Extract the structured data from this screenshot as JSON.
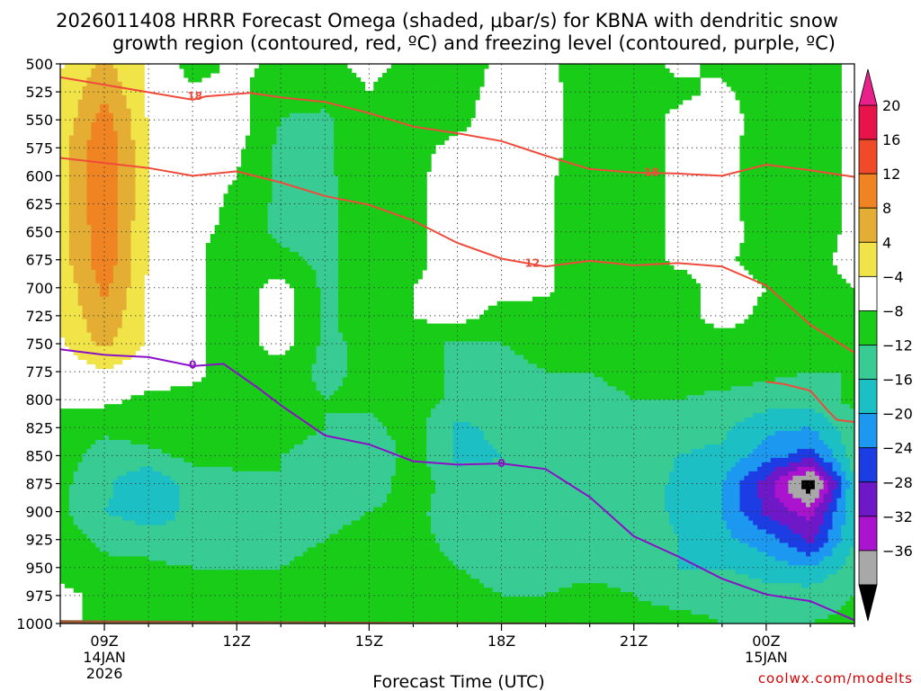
{
  "chart_data": {
    "type": "heatmap",
    "title_line1": "2026011408 HRRR Forecast Omega (shaded, μbar/s) for KBNA with dendritic snow",
    "title_line2": "growth region (contoured, red, ºC) and freezing level (contoured, purple, ºC)",
    "xlabel": "Forecast Time (UTC)",
    "x_hours": [
      8,
      9,
      10,
      11,
      12,
      13,
      14,
      15,
      16,
      17,
      18,
      19,
      20,
      21,
      22,
      23,
      24,
      25,
      26
    ],
    "x_ticks": [
      {
        "hour": 9,
        "label": "09Z",
        "date": "14JAN",
        "year": "2026"
      },
      {
        "hour": 12,
        "label": "12Z",
        "date": "",
        "year": ""
      },
      {
        "hour": 15,
        "label": "15Z",
        "date": "",
        "year": ""
      },
      {
        "hour": 18,
        "label": "18Z",
        "date": "",
        "year": ""
      },
      {
        "hour": 21,
        "label": "21Z",
        "date": "",
        "year": ""
      },
      {
        "hour": 24,
        "label": "00Z",
        "date": "15JAN",
        "year": ""
      }
    ],
    "y_levels": [
      500,
      525,
      550,
      575,
      600,
      625,
      650,
      675,
      700,
      725,
      750,
      775,
      800,
      825,
      850,
      875,
      900,
      925,
      950,
      975,
      1000
    ],
    "ylim": [
      500,
      1000
    ],
    "y_reversed": true,
    "grid": true,
    "colorbar": {
      "labels": [
        "20",
        "16",
        "12",
        "8",
        "4",
        "−4",
        "−8",
        "−12",
        "−16",
        "−20",
        "−24",
        "−28",
        "−32",
        "−36"
      ],
      "bins": [
        {
          "lo": 16,
          "hi": 20,
          "color": "#e8134a"
        },
        {
          "lo": 12,
          "hi": 16,
          "color": "#ef4a2a"
        },
        {
          "lo": 8,
          "hi": 12,
          "color": "#f08422"
        },
        {
          "lo": 4,
          "hi": 8,
          "color": "#e3ae33"
        },
        {
          "lo": -4,
          "hi": 4,
          "color": "#f0e448"
        },
        {
          "lo": -8,
          "hi": -4,
          "color": "#ffffff"
        },
        {
          "lo": -12,
          "hi": -8,
          "color": "#18cc18"
        },
        {
          "lo": -16,
          "hi": -12,
          "color": "#38cc94"
        },
        {
          "lo": -20,
          "hi": -16,
          "color": "#1cc0c4"
        },
        {
          "lo": -24,
          "hi": -20,
          "color": "#1c98f0"
        },
        {
          "lo": -28,
          "hi": -24,
          "color": "#1c3ce4"
        },
        {
          "lo": -32,
          "hi": -28,
          "color": "#6e18c8"
        },
        {
          "lo": -36,
          "hi": -32,
          "color": "#aa14ce"
        },
        {
          "lo": -40,
          "hi": -36,
          "color": "#a8a8a8"
        }
      ],
      "top_arrow_color": "#e8208a",
      "bottom_arrow_color": "#000000"
    },
    "omega_field": {
      "units": "microbar/s",
      "x_hours": [
        8,
        9,
        10,
        11,
        12,
        13,
        14,
        15,
        16,
        17,
        18,
        19,
        20,
        21,
        22,
        23,
        24,
        25,
        26
      ],
      "levels": [
        500,
        525,
        550,
        575,
        600,
        625,
        650,
        675,
        700,
        725,
        750,
        775,
        800,
        825,
        850,
        875,
        900,
        925,
        950,
        975,
        1000
      ],
      "values": [
        [
          0,
          5,
          0,
          -6,
          -3,
          -5,
          -5,
          -3,
          -5,
          -6,
          -3,
          -3,
          -7,
          -6,
          -3,
          -5,
          -7,
          -6,
          -3
        ],
        [
          1,
          7,
          0,
          -3,
          -3,
          -7,
          -6,
          -4,
          -6,
          -5,
          -3,
          -2,
          -7,
          -6,
          -5,
          -3,
          -7,
          -6,
          -3
        ],
        [
          1,
          10,
          0,
          -2,
          -2,
          -8,
          -9,
          -4,
          -6,
          -5,
          -2,
          -2,
          -7,
          -6,
          -3,
          -1,
          -7,
          -6,
          -3
        ],
        [
          2,
          12,
          0,
          -2,
          -3,
          -9,
          -9,
          -4,
          -5,
          -3,
          -2,
          -2,
          -7,
          -6,
          -3,
          -2,
          -7,
          -6,
          -3
        ],
        [
          2,
          12,
          0,
          -2,
          -4,
          -9,
          -9,
          -5,
          -5,
          -2,
          -2,
          -3,
          -7,
          -6,
          -3,
          -2,
          -7,
          -6,
          -3
        ],
        [
          2,
          12,
          0,
          -2,
          -5,
          -9,
          -9,
          -5,
          -5,
          -2,
          -2,
          -3,
          -7,
          -6,
          -3,
          -2,
          -7,
          -6,
          -3
        ],
        [
          2,
          11,
          0,
          -3,
          -5,
          -9,
          -9,
          -5,
          -5,
          -2,
          -2,
          -3,
          -7,
          -6,
          -3,
          -2,
          -6,
          -6,
          -3
        ],
        [
          2,
          11,
          0,
          -3,
          -7,
          -7,
          -9,
          -5,
          -5,
          -2,
          -2,
          -3,
          -7,
          -6,
          -3,
          -3,
          -6,
          -5,
          -3
        ],
        [
          1,
          9,
          0,
          -3,
          -6,
          -2,
          -9,
          -5,
          -4,
          -2,
          -2,
          -3,
          -7,
          -6,
          -6,
          -2,
          -4,
          -5,
          -4
        ],
        [
          1,
          7,
          0,
          -3,
          -6,
          -2,
          -9,
          -5,
          -4,
          -2,
          -6,
          -6,
          -7,
          -6,
          -6,
          -2,
          -5,
          -5,
          -5
        ],
        [
          0,
          5,
          0,
          -3,
          -6,
          -2,
          -9,
          -7,
          -5,
          -9,
          -8,
          -7,
          -7,
          -7,
          -6,
          -6,
          -6,
          -7,
          -7
        ],
        [
          -2,
          0,
          -2,
          -3,
          -6,
          -6,
          -9,
          -7,
          -6,
          -9,
          -9,
          -8,
          -8,
          -7,
          -6,
          -6,
          -7,
          -8,
          -8
        ],
        [
          -3,
          -3,
          -5,
          -5,
          -7,
          -6,
          -8,
          -7,
          -6,
          -9,
          -10,
          -9,
          -9,
          -8,
          -8,
          -9,
          -10,
          -10,
          -7
        ],
        [
          -6,
          -7,
          -6,
          -5,
          -7,
          -7,
          -8,
          -9,
          -6,
          -13,
          -11,
          -9,
          -9,
          -8,
          -10,
          -11,
          -15,
          -16,
          -9
        ],
        [
          -6,
          -10,
          -9,
          -7,
          -7,
          -8,
          -9,
          -12,
          -6,
          -13,
          -12,
          -10,
          -9,
          -9,
          -12,
          -13,
          -18,
          -22,
          -10
        ],
        [
          -7,
          -11,
          -16,
          -10,
          -9,
          -8,
          -9,
          -10,
          -6,
          -10,
          -11,
          -11,
          -10,
          -9,
          -13,
          -16,
          -26,
          -40,
          -12
        ],
        [
          -7,
          -12,
          -14,
          -11,
          -10,
          -9,
          -9,
          -8,
          -7,
          -10,
          -11,
          -11,
          -10,
          -9,
          -13,
          -16,
          -25,
          -30,
          -12
        ],
        [
          -6,
          -9,
          -10,
          -12,
          -11,
          -9,
          -8,
          -7,
          -7,
          -9,
          -10,
          -10,
          -9,
          -9,
          -12,
          -15,
          -18,
          -25,
          -12
        ],
        [
          -5,
          -7,
          -7,
          -8,
          -8,
          -8,
          -7,
          -7,
          -7,
          -8,
          -9,
          -9,
          -9,
          -9,
          -12,
          -12,
          -14,
          -16,
          -10
        ],
        [
          -3,
          -5,
          -5,
          -4,
          -5,
          -4,
          -4,
          -4,
          -7,
          -7,
          -8,
          -8,
          -7,
          -8,
          -9,
          -9,
          -10,
          -10,
          -8
        ],
        [
          -3,
          -5,
          -5,
          -4,
          -5,
          -4,
          -4,
          -4,
          -7,
          -7,
          -7,
          -7,
          -7,
          -7,
          -7,
          -8,
          -8,
          -8,
          -7
        ]
      ]
    },
    "temperature_contours": [
      {
        "label": "18",
        "color": "#f04a3a",
        "points": [
          [
            8,
            512
          ],
          [
            11,
            532
          ],
          [
            11.3,
            529
          ],
          [
            12.3,
            526
          ],
          [
            13,
            530
          ],
          [
            14,
            534
          ],
          [
            15,
            544
          ],
          [
            16,
            556
          ],
          [
            17,
            562
          ],
          [
            18,
            569
          ],
          [
            19,
            582
          ],
          [
            20,
            594
          ],
          [
            21,
            597
          ],
          [
            22,
            598
          ],
          [
            23,
            600
          ],
          [
            24,
            590
          ],
          [
            25,
            595
          ],
          [
            26,
            601
          ]
        ]
      },
      {
        "label": "12",
        "color": "#f04a3a",
        "points": [
          [
            8,
            584
          ],
          [
            10,
            593
          ],
          [
            11,
            600
          ],
          [
            12,
            596
          ],
          [
            13,
            606
          ],
          [
            14,
            618
          ],
          [
            15,
            626
          ],
          [
            16,
            640
          ],
          [
            17,
            660
          ],
          [
            18,
            674
          ],
          [
            19,
            681
          ],
          [
            20,
            676
          ],
          [
            21,
            680
          ],
          [
            22,
            678
          ],
          [
            23,
            681
          ],
          [
            24,
            698
          ],
          [
            25,
            733
          ],
          [
            26,
            758
          ]
        ]
      },
      {
        "label": "",
        "color": "#f04a3a",
        "points": [
          [
            24,
            784
          ],
          [
            24.4,
            786
          ],
          [
            25,
            792
          ],
          [
            25.4,
            810
          ],
          [
            25.6,
            818
          ],
          [
            26,
            820
          ]
        ]
      }
    ],
    "freezing_level": {
      "label": "0",
      "color": "#8a10c8",
      "points": [
        [
          8,
          755
        ],
        [
          9,
          760
        ],
        [
          10,
          762
        ],
        [
          11,
          770
        ],
        [
          11.7,
          768
        ],
        [
          12.5,
          790
        ],
        [
          13,
          805
        ],
        [
          14,
          832
        ],
        [
          15,
          840
        ],
        [
          16,
          855
        ],
        [
          17,
          858
        ],
        [
          18,
          857
        ],
        [
          19,
          862
        ],
        [
          20,
          887
        ],
        [
          21,
          922
        ],
        [
          22,
          940
        ],
        [
          23,
          960
        ],
        [
          24,
          974
        ],
        [
          25,
          980
        ],
        [
          26,
          997
        ]
      ]
    },
    "ground": {
      "color": "#9a5a36"
    },
    "credit": "coolwx.com/modelts"
  }
}
